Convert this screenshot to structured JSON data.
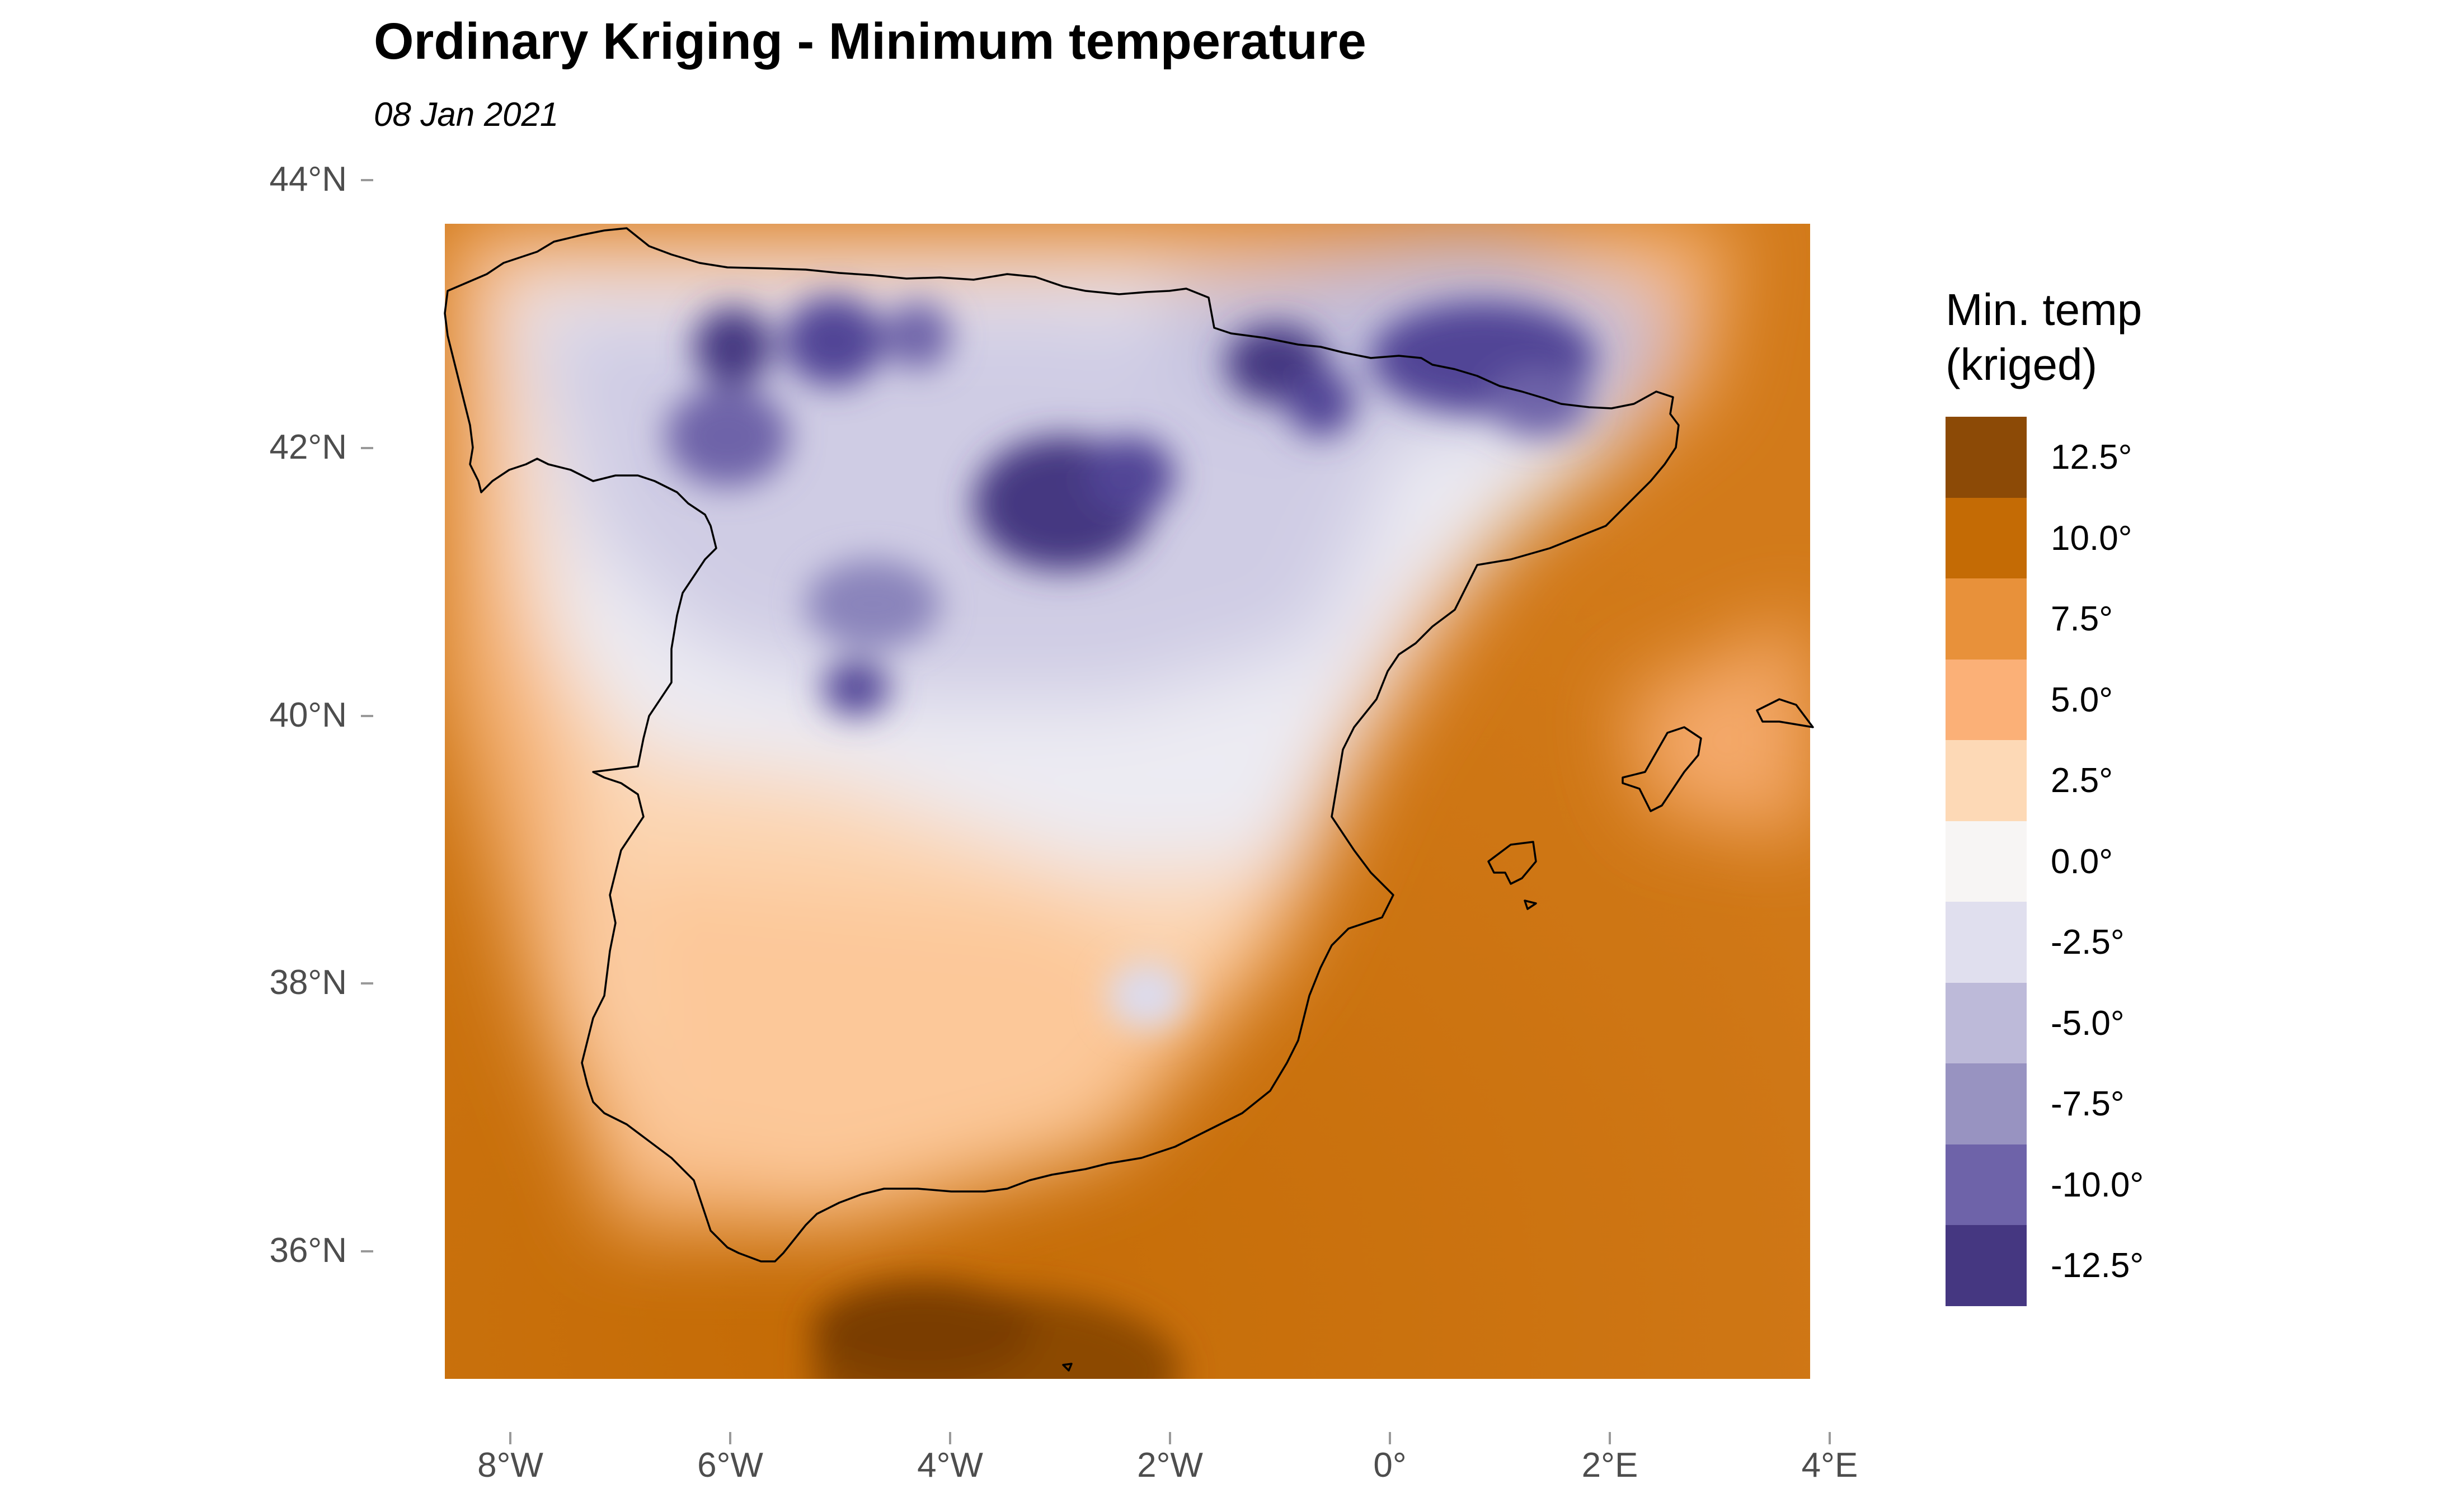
{
  "title": "Ordinary Kriging - Minimum temperature",
  "subtitle": "08 Jan 2021",
  "axes": {
    "y_labels": [
      "44°N",
      "42°N",
      "40°N",
      "38°N",
      "36°N"
    ],
    "y_values": [
      44,
      42,
      40,
      38,
      36
    ],
    "x_labels": [
      "8°W",
      "6°W",
      "4°W",
      "2°W",
      "0°",
      "2°E",
      "4°E"
    ],
    "x_values": [
      -8,
      -6,
      -4,
      -2,
      0,
      2,
      4
    ]
  },
  "legend": {
    "title": "Min. temp\n(kriged)",
    "entries": [
      {
        "label": "12.5°",
        "value": 12.5,
        "color": "#8c4a06"
      },
      {
        "label": "10.0°",
        "value": 10.0,
        "color": "#c46b05"
      },
      {
        "label": "7.5°",
        "value": 7.5,
        "color": "#e8913a"
      },
      {
        "label": "5.0°",
        "value": 5.0,
        "color": "#fbb077"
      },
      {
        "label": "2.5°",
        "value": 2.5,
        "color": "#fdd9b6"
      },
      {
        "label": "0.0°",
        "value": 0.0,
        "color": "#f7f5f4"
      },
      {
        "label": "-2.5°",
        "value": -2.5,
        "color": "#e0dfee"
      },
      {
        "label": "-5.0°",
        "value": -5.0,
        "color": "#bdbad9"
      },
      {
        "label": "-7.5°",
        "value": -7.5,
        "color": "#9893c1"
      },
      {
        "label": "-10.0°",
        "value": -10.0,
        "color": "#6e63a9"
      },
      {
        "label": "-12.5°",
        "value": -12.5,
        "color": "#453781"
      }
    ]
  },
  "chart_data": {
    "type": "heatmap",
    "title": "Ordinary Kriging - Minimum temperature",
    "subtitle": "08 Jan 2021",
    "xlim": [
      -8.6,
      3.9
    ],
    "ylim": [
      35.0,
      43.6
    ],
    "color_scale": "diverging orange (warm) to purple (cold)",
    "value_range": [
      -12.5,
      12.5
    ],
    "cold_spots": [
      {
        "lon": -6.0,
        "lat": 42.8,
        "value": -12
      },
      {
        "lon": -5.0,
        "lat": 42.8,
        "value": -11
      },
      {
        "lon": -3.0,
        "lat": 41.6,
        "value": -13
      },
      {
        "lon": -2.4,
        "lat": 41.8,
        "value": -11
      },
      {
        "lon": -1.2,
        "lat": 42.6,
        "value": -11
      },
      {
        "lon": 0.5,
        "lat": 42.7,
        "value": -10
      },
      {
        "lon": -4.9,
        "lat": 40.2,
        "value": -10
      }
    ],
    "warm_spots": [
      {
        "lon": -3.5,
        "lat": 35.4,
        "value": 13
      },
      {
        "lon": 2.5,
        "lat": 36.5,
        "value": 10
      },
      {
        "lon": -8.0,
        "lat": 36.5,
        "value": 10
      }
    ]
  }
}
